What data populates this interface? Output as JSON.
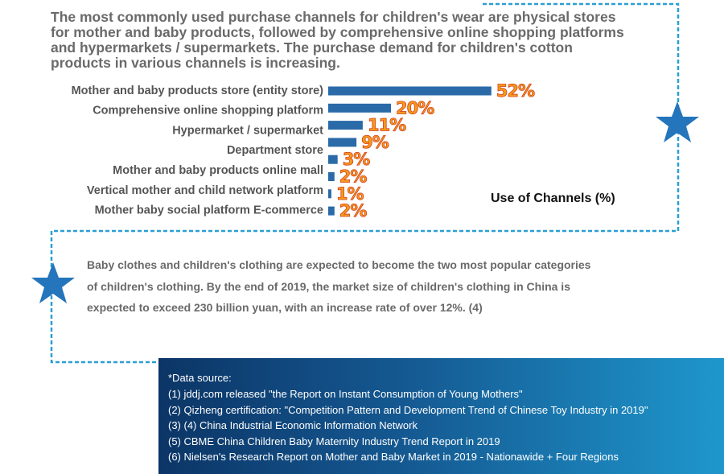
{
  "heading": {
    "lines": [
      "The most commonly used purchase channels for children's wear are physical stores",
      "for mother and baby products, followed by comprehensive online shopping platforms",
      "and hypermarkets / supermarkets. The purchase demand for children's cotton",
      "products in various channels is increasing."
    ]
  },
  "chart_data": {
    "type": "bar",
    "orientation": "horizontal",
    "title": "Use of Channels (%)",
    "categories": [
      "Mother and baby products store (entity store)",
      "Comprehensive online shopping platform",
      "Hypermarket / supermarket",
      "Department store",
      null,
      "Mother and baby products online mall",
      "Vertical mother and child network platform",
      "Mother baby social platform E-commerce"
    ],
    "values": [
      52,
      20,
      11,
      9,
      3,
      2,
      1,
      2
    ],
    "value_labels": [
      "52%",
      "20%",
      "11%",
      "9%",
      "3%",
      "2%",
      "1%",
      "2%"
    ],
    "color": "#2a6aa8"
  },
  "paragraph": {
    "lines": [
      "Baby clothes and children's clothing are expected to become the two most popular categories",
      "of children's clothing. By the end of 2019, the market size of children's clothing in China is",
      "expected to exceed 230 billion yuan, with an increase rate of over 12%.   (4)"
    ]
  },
  "sources": {
    "title": "*Data source:",
    "items": [
      "(1) jddj.com released \"the Report on Instant Consumption of Young Mothers\"",
      "(2) Qizheng certification: \"Competition Pattern and Development Trend of Chinese Toy Industry in 2019\"",
      "(3) (4) China Industrial Economic Information Network",
      "(5) CBME China Children Baby Maternity Industry Trend Report in 2019",
      "(6) Nielsen's Research Report on Mother and Baby Market in 2019 - Nationawide + Four Regions"
    ]
  }
}
